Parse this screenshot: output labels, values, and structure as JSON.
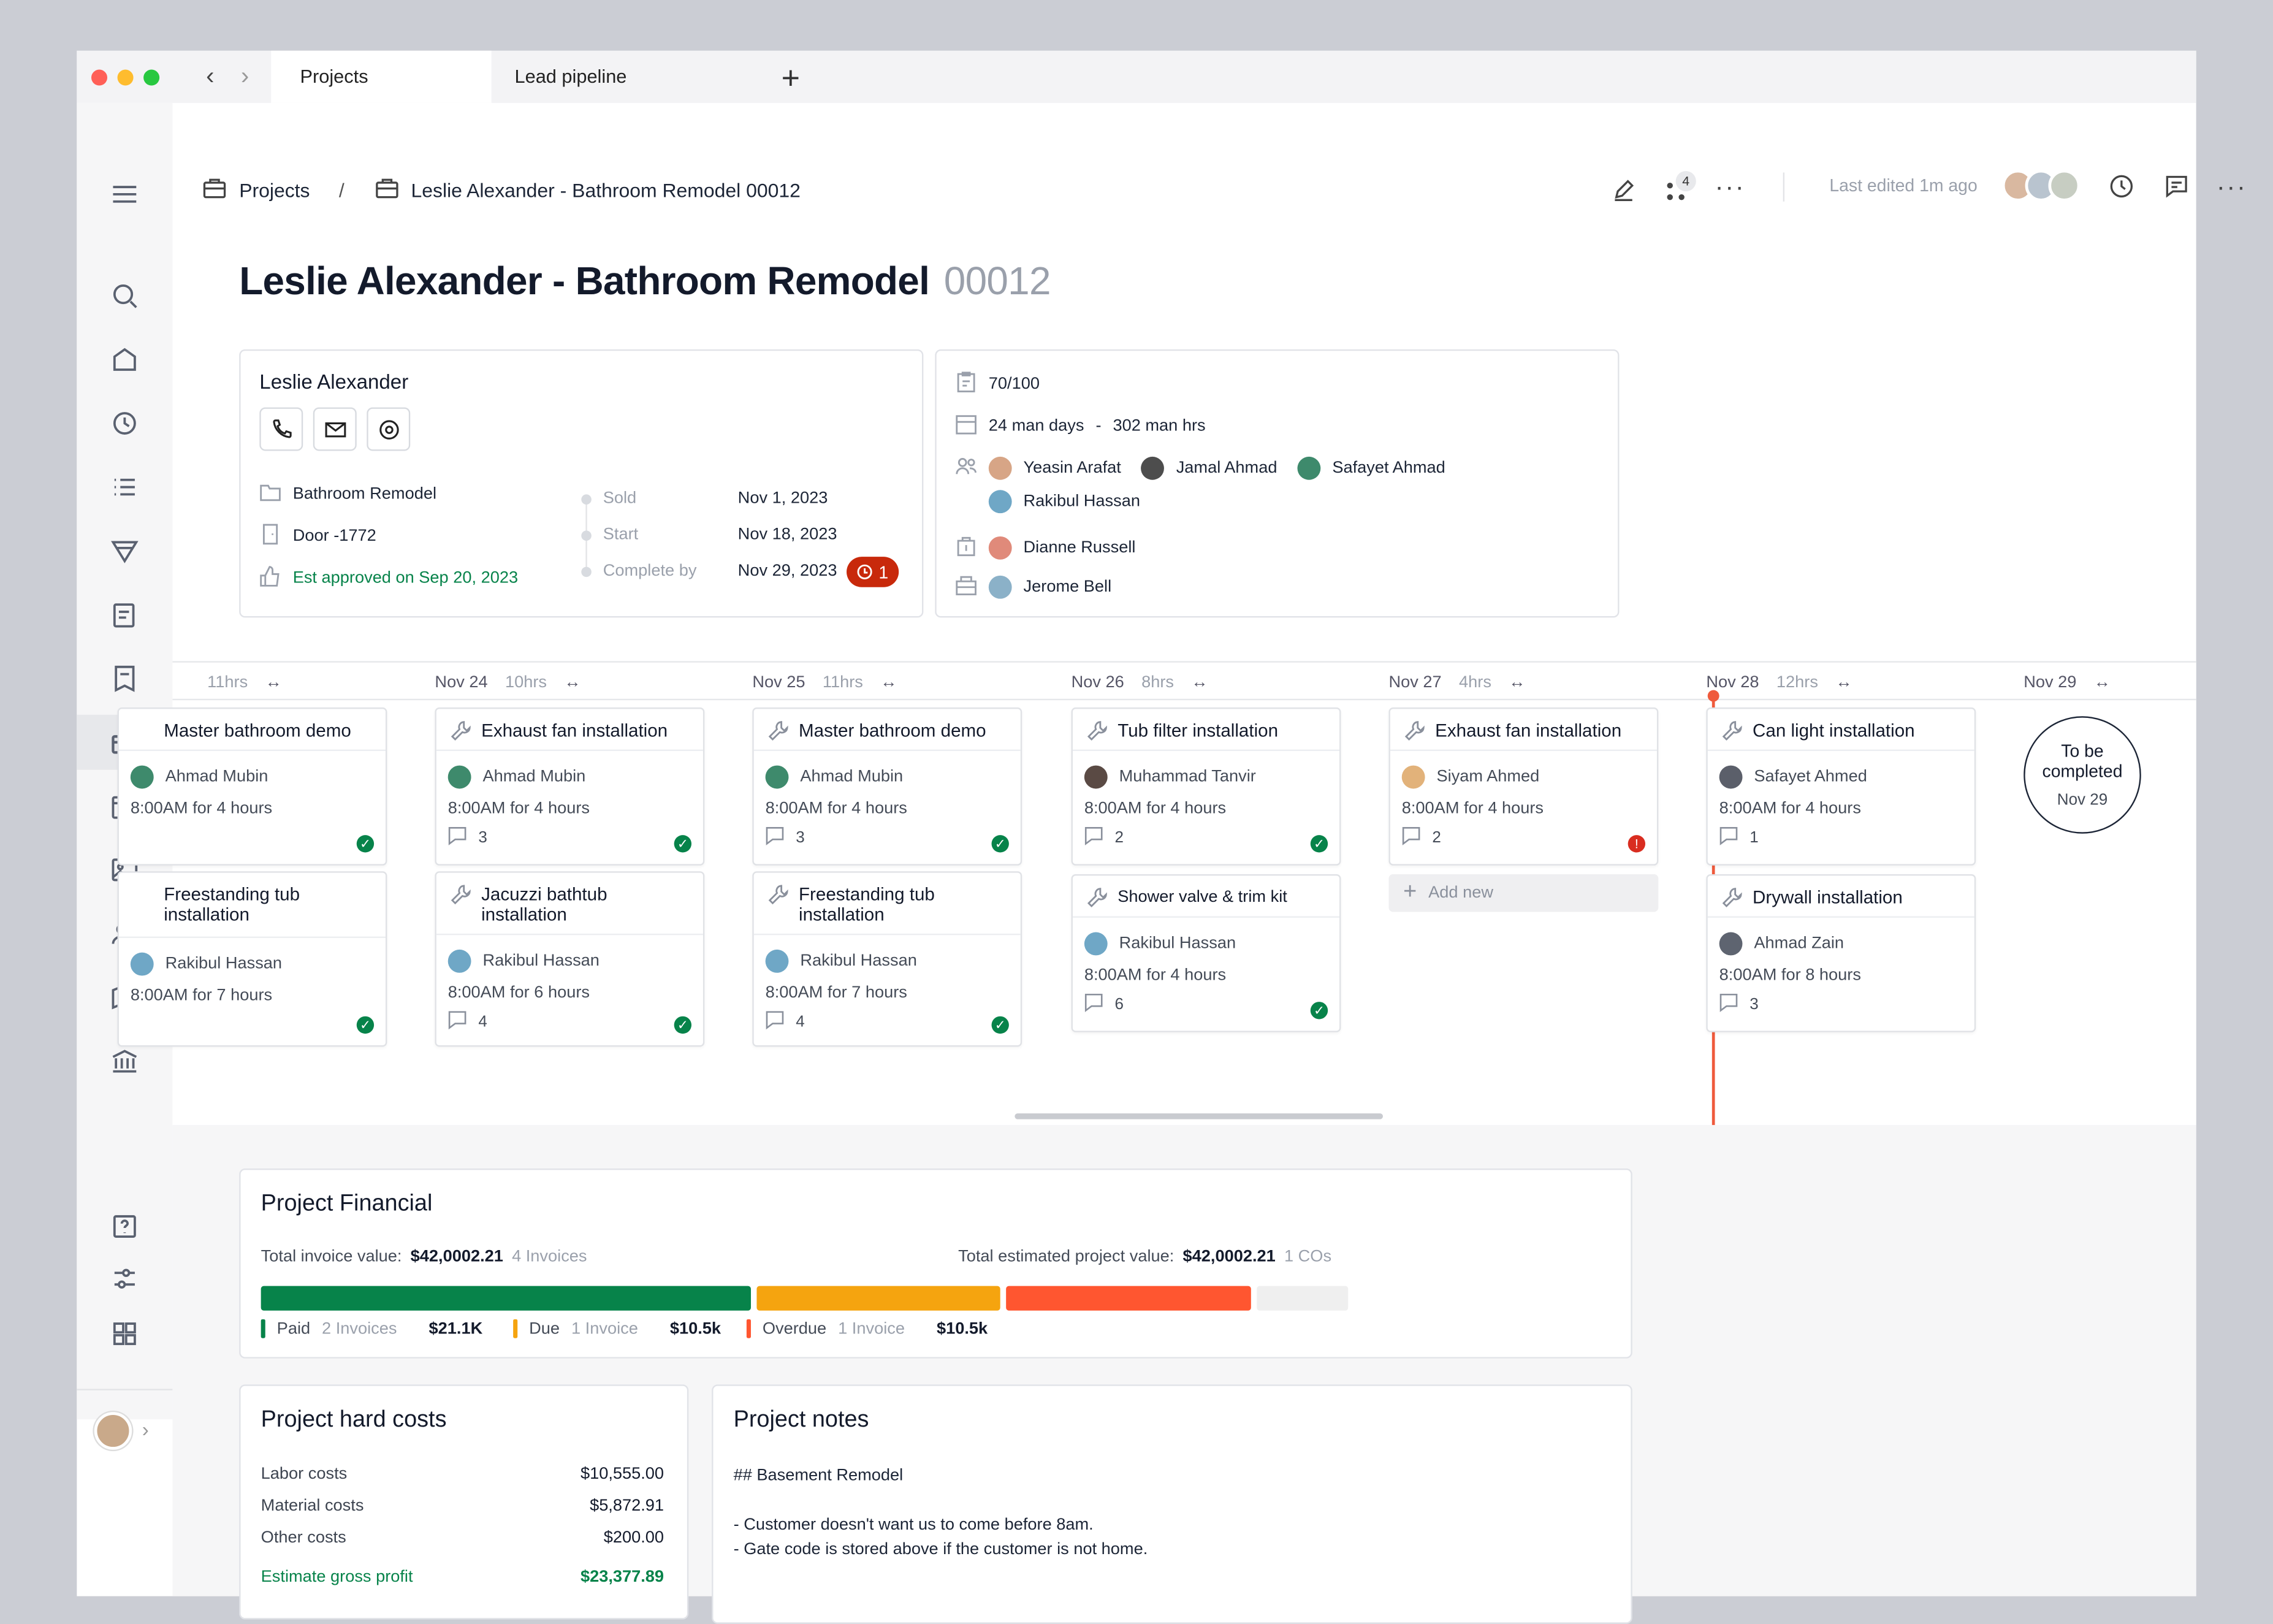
{
  "tabs": {
    "active": "Projects",
    "other": "Lead pipeline"
  },
  "breadcrumb": {
    "root": "Projects",
    "separator": "/",
    "current": "Leslie Alexander - Bathroom Remodel 00012"
  },
  "header": {
    "notification_count": "4",
    "last_edited": "Last edited 1m ago"
  },
  "page": {
    "title": "Leslie Alexander - Bathroom Remodel",
    "number": "00012"
  },
  "client": {
    "name": "Leslie Alexander",
    "project_type": "Bathroom Remodel",
    "door": "Door -1772",
    "approval": "Est approved on Sep 20, 2023",
    "dates": [
      {
        "label": "Sold",
        "value": "Nov 1, 2023"
      },
      {
        "label": "Start",
        "value": "Nov 18, 2023"
      },
      {
        "label": "Complete by",
        "value": "Nov 29, 2023"
      }
    ],
    "overdue_count": "1"
  },
  "project_info": {
    "score": "70/100",
    "man_days": "24 man days",
    "dash": "-",
    "man_hours": "302 man hrs",
    "crew": [
      "Yeasin Arafat",
      "Jamal Ahmad",
      "Safayet Ahmad",
      "Rakibul Hassan"
    ],
    "sales": "Dianne Russell",
    "manager": "Jerome Bell"
  },
  "timeline": {
    "days": [
      {
        "date": "",
        "hrs": "11hrs"
      },
      {
        "date": "Nov 24",
        "hrs": "10hrs"
      },
      {
        "date": "Nov 25",
        "hrs": "11hrs"
      },
      {
        "date": "Nov 26",
        "hrs": "8hrs"
      },
      {
        "date": "Nov 27",
        "hrs": "4hrs"
      },
      {
        "date": "Nov 28",
        "hrs": "12hrs"
      },
      {
        "date": "Nov 29",
        "hrs": ""
      }
    ],
    "tasks": [
      {
        "title": "Master bathroom demo",
        "person": "Ahmad Mubin",
        "time": "8:00AM for 4 hours",
        "comments": "",
        "status": "done"
      },
      {
        "title": "Freestanding tub installation",
        "person": "Rakibul Hassan",
        "time": "8:00AM for 7 hours",
        "comments": "",
        "status": "done"
      },
      {
        "title": "Exhaust fan installation",
        "person": "Ahmad Mubin",
        "time": "8:00AM for 4 hours",
        "comments": "3",
        "status": "done"
      },
      {
        "title": "Jacuzzi bathtub installation",
        "person": "Rakibul Hassan",
        "time": "8:00AM for 6 hours",
        "comments": "4",
        "status": "done"
      },
      {
        "title": "Master bathroom demo",
        "person": "Ahmad Mubin",
        "time": "8:00AM for 4 hours",
        "comments": "3",
        "status": "done"
      },
      {
        "title": "Freestanding tub installation",
        "person": "Rakibul Hassan",
        "time": "8:00AM for 7 hours",
        "comments": "4",
        "status": "done"
      },
      {
        "title": "Tub filter installation",
        "person": "Muhammad Tanvir",
        "time": "8:00AM for 4 hours",
        "comments": "2",
        "status": "done"
      },
      {
        "title": "Shower valve & trim kit",
        "person": "Rakibul Hassan",
        "time": "8:00AM for 4 hours",
        "comments": "6",
        "status": "done"
      },
      {
        "title": "Exhaust fan installation",
        "person": "Siyam Ahmed",
        "time": "8:00AM for 4 hours",
        "comments": "2",
        "status": "late"
      },
      {
        "title": "Can light installation",
        "person": "Safayet Ahmed",
        "time": "8:00AM for 4 hours",
        "comments": "1",
        "status": ""
      },
      {
        "title": "Drywall installation",
        "person": "Ahmad Zain",
        "time": "8:00AM for 8 hours",
        "comments": "3",
        "status": ""
      }
    ],
    "add_new": "Add new",
    "to_be_completed": "To be completed",
    "to_be_completed_date": "Nov 29"
  },
  "financial": {
    "title": "Project Financial",
    "invoice_label": "Total invoice value:",
    "invoice_value": "$42,0002.21",
    "invoice_count": "4 Invoices",
    "estimated_label": "Total estimated project value:",
    "estimated_value": "$42,0002.21",
    "co_count": "1 COs",
    "paid": {
      "label": "Paid",
      "count": "2 Invoices",
      "value": "$21.1K",
      "fraction": 0.45
    },
    "due": {
      "label": "Due",
      "count": "1 Invoice",
      "value": "$10.5k",
      "fraction": 0.225
    },
    "overdue": {
      "label": "Overdue",
      "count": "1 Invoice",
      "value": "$10.5k",
      "fraction": 0.225
    },
    "colors": {
      "paid": "#07834a",
      "due": "#f5a40f",
      "overdue": "#ff5630",
      "remaining": "#efefef"
    }
  },
  "hard_costs": {
    "title": "Project hard costs",
    "rows": [
      {
        "label": "Labor costs",
        "value": "$10,555.00"
      },
      {
        "label": "Material costs",
        "value": "$5,872.91"
      },
      {
        "label": "Other costs",
        "value": "$200.00"
      }
    ],
    "profit_label": "Estimate gross profit",
    "profit_value": "$23,377.89"
  },
  "notes": {
    "title": "Project notes",
    "heading": "## Basement Remodel",
    "line1": "- Customer doesn't want us to come before 8am.",
    "line2": "- Gate code is stored above if the customer is not home."
  }
}
